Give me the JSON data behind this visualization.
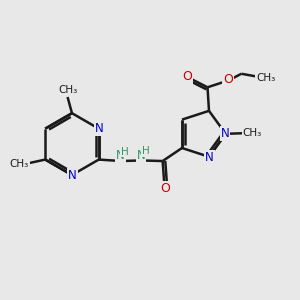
{
  "bg_color": "#e8e8e8",
  "bond_color": "#1a1a1a",
  "N_color": "#0000cc",
  "NH_color": "#339966",
  "O_color": "#cc0000",
  "C_color": "#1a1a1a",
  "bond_width": 1.8,
  "figsize": [
    3.0,
    3.0
  ],
  "dpi": 100,
  "xlim": [
    0,
    10
  ],
  "ylim": [
    0,
    10
  ]
}
